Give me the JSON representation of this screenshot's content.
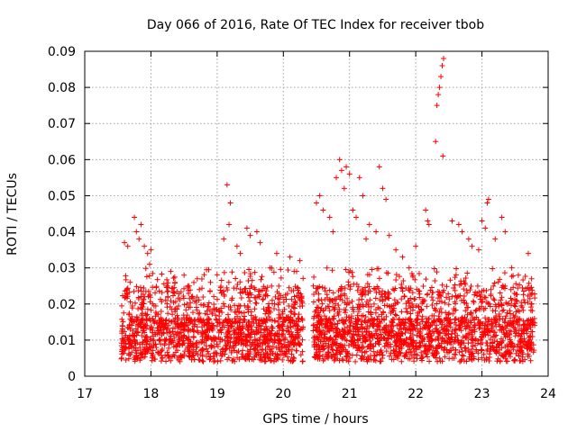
{
  "chart_data": {
    "type": "scatter",
    "title": "Day 066 of 2016, Rate Of TEC Index for receiver tbob",
    "xlabel": "GPS time / hours",
    "ylabel": "ROTI / TECUs",
    "xlim": [
      17,
      24
    ],
    "ylim": [
      0,
      0.09
    ],
    "x_ticks": [
      "17",
      "18",
      "19",
      "20",
      "21",
      "22",
      "23",
      "24"
    ],
    "y_ticks": [
      "0",
      "0.01",
      "0.02",
      "0.03",
      "0.04",
      "0.05",
      "0.06",
      "0.07",
      "0.08",
      "0.09"
    ],
    "grid": true,
    "marker": "+",
    "marker_color": "#ff0000",
    "segments": [
      {
        "x_start": 17.55,
        "x_end": 20.3,
        "note": "dense band 0.004-0.03"
      },
      {
        "x_start": 20.45,
        "x_end": 23.8,
        "note": "dense band 0.003-0.03"
      }
    ],
    "series": [
      {
        "name": "ROTI",
        "points": [
          [
            17.6,
            0.037
          ],
          [
            17.65,
            0.036
          ],
          [
            17.75,
            0.044
          ],
          [
            17.78,
            0.04
          ],
          [
            17.82,
            0.038
          ],
          [
            17.85,
            0.042
          ],
          [
            17.9,
            0.036
          ],
          [
            17.95,
            0.034
          ],
          [
            17.98,
            0.031
          ],
          [
            18.0,
            0.035
          ],
          [
            18.3,
            0.029
          ],
          [
            18.5,
            0.028
          ],
          [
            18.7,
            0.027
          ],
          [
            18.9,
            0.026
          ],
          [
            19.1,
            0.038
          ],
          [
            19.15,
            0.053
          ],
          [
            19.2,
            0.048
          ],
          [
            19.18,
            0.042
          ],
          [
            19.3,
            0.036
          ],
          [
            19.35,
            0.034
          ],
          [
            19.45,
            0.041
          ],
          [
            19.5,
            0.039
          ],
          [
            19.6,
            0.04
          ],
          [
            19.65,
            0.037
          ],
          [
            19.8,
            0.03
          ],
          [
            19.9,
            0.034
          ],
          [
            20.1,
            0.033
          ],
          [
            20.2,
            0.029
          ],
          [
            20.25,
            0.032
          ],
          [
            20.5,
            0.048
          ],
          [
            20.55,
            0.05
          ],
          [
            20.6,
            0.046
          ],
          [
            20.7,
            0.044
          ],
          [
            20.75,
            0.04
          ],
          [
            20.8,
            0.055
          ],
          [
            20.85,
            0.06
          ],
          [
            20.88,
            0.057
          ],
          [
            20.92,
            0.052
          ],
          [
            20.95,
            0.058
          ],
          [
            21.0,
            0.056
          ],
          [
            21.05,
            0.046
          ],
          [
            21.1,
            0.044
          ],
          [
            21.15,
            0.055
          ],
          [
            21.2,
            0.05
          ],
          [
            21.25,
            0.038
          ],
          [
            21.3,
            0.042
          ],
          [
            21.4,
            0.04
          ],
          [
            21.45,
            0.058
          ],
          [
            21.5,
            0.052
          ],
          [
            21.55,
            0.049
          ],
          [
            21.6,
            0.039
          ],
          [
            21.7,
            0.035
          ],
          [
            21.8,
            0.033
          ],
          [
            21.9,
            0.03
          ],
          [
            22.0,
            0.036
          ],
          [
            22.15,
            0.046
          ],
          [
            22.18,
            0.043
          ],
          [
            22.2,
            0.042
          ],
          [
            22.3,
            0.065
          ],
          [
            22.32,
            0.075
          ],
          [
            22.34,
            0.078
          ],
          [
            22.36,
            0.08
          ],
          [
            22.38,
            0.083
          ],
          [
            22.4,
            0.086
          ],
          [
            22.42,
            0.088
          ],
          [
            22.41,
            0.061
          ],
          [
            22.55,
            0.043
          ],
          [
            22.65,
            0.042
          ],
          [
            22.7,
            0.04
          ],
          [
            22.8,
            0.038
          ],
          [
            22.85,
            0.036
          ],
          [
            22.95,
            0.035
          ],
          [
            23.0,
            0.043
          ],
          [
            23.05,
            0.041
          ],
          [
            23.08,
            0.048
          ],
          [
            23.1,
            0.049
          ],
          [
            23.2,
            0.038
          ],
          [
            23.3,
            0.044
          ],
          [
            23.35,
            0.04
          ],
          [
            23.45,
            0.03
          ],
          [
            23.55,
            0.028
          ],
          [
            23.7,
            0.034
          ],
          [
            23.75,
            0.027
          ]
        ]
      }
    ]
  }
}
